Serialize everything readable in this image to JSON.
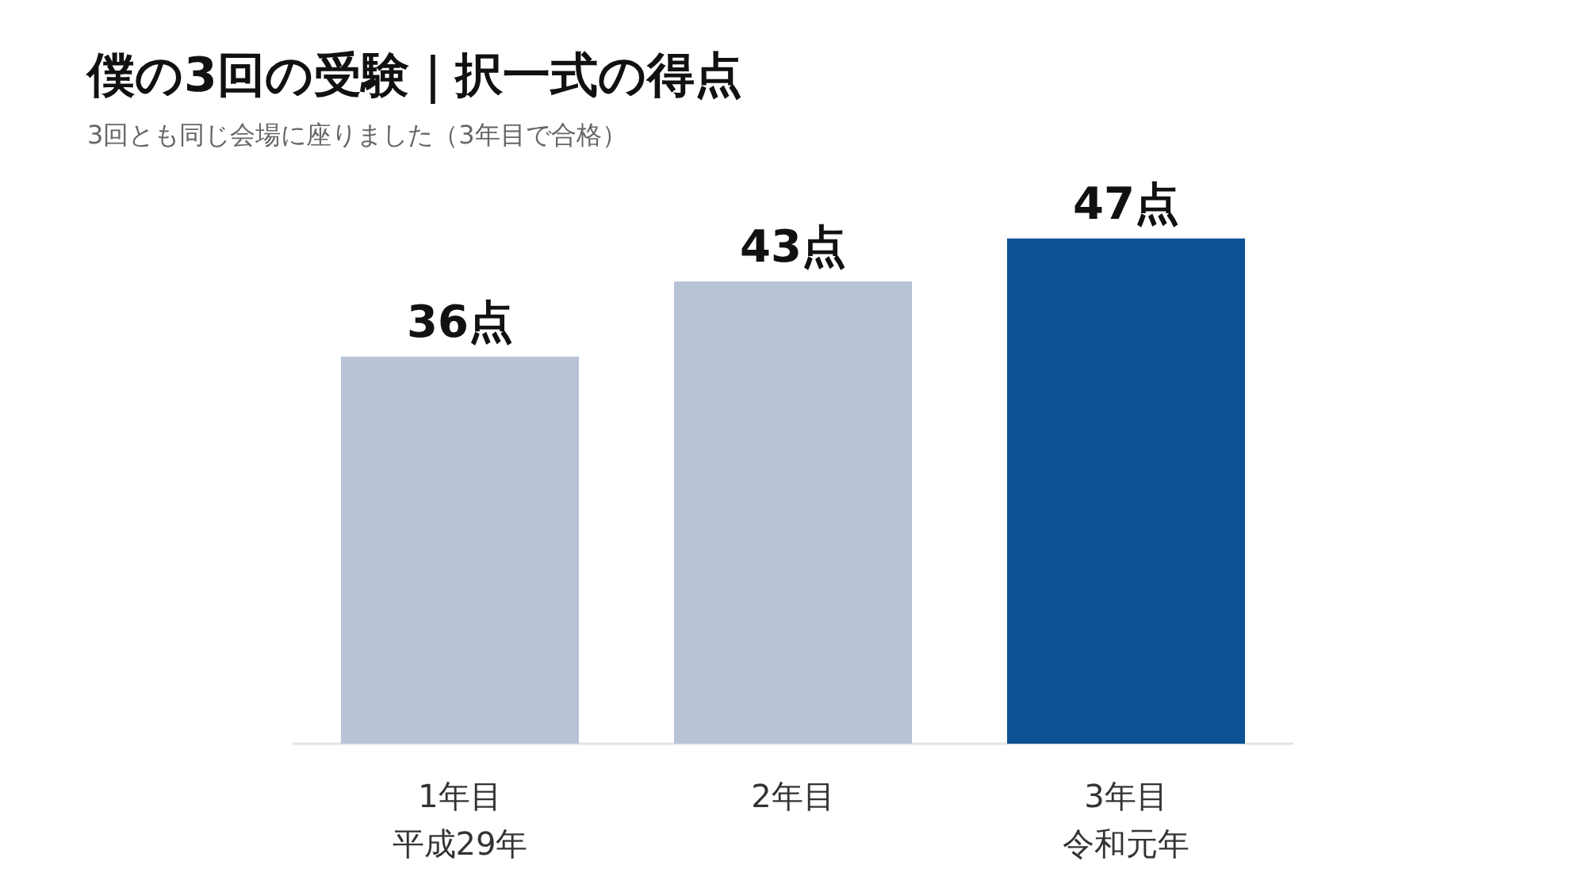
{
  "chart_data": {
    "type": "bar",
    "title": "僕の3回の受験｜択一式の得点",
    "subtitle": "3回とも同じ会場に座りました（3年目で合格）",
    "categories": [
      "1年目平成29年",
      "2年目",
      "3年目令和元年"
    ],
    "values": [
      36,
      43,
      47
    ],
    "colors": [
      "#b8c4d6",
      "#b8c4d6",
      "#0d5294"
    ],
    "value_labels": [
      "36点",
      "43点",
      "47点"
    ]
  }
}
